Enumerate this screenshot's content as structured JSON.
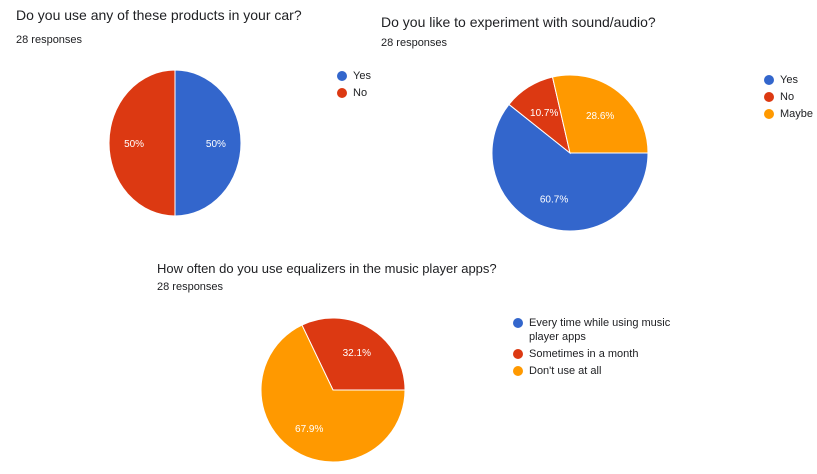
{
  "charts": [
    {
      "title": "Do you use any of these products in your car?",
      "subtitle": "28 responses",
      "chart_data": {
        "type": "pie",
        "categories": [
          "Yes",
          "No"
        ],
        "values": [
          50,
          50
        ],
        "labels": [
          "50%",
          "50%"
        ],
        "colors": [
          "#3366cc",
          "#dc3912"
        ],
        "legend_position": "right"
      }
    },
    {
      "title": "Do you like to experiment with sound/audio?",
      "subtitle": "28 responses",
      "chart_data": {
        "type": "pie",
        "categories": [
          "Yes",
          "No",
          "Maybe"
        ],
        "values": [
          60.7,
          10.7,
          28.6
        ],
        "labels": [
          "60.7%",
          "10.7%",
          "28.6%"
        ],
        "colors": [
          "#3366cc",
          "#dc3912",
          "#ff9900"
        ],
        "legend_position": "right"
      }
    },
    {
      "title": "How often do you use equalizers in the music player apps?",
      "subtitle": "28 responses",
      "chart_data": {
        "type": "pie",
        "categories": [
          "Every time while using music player apps",
          "Sometimes in a month",
          "Don't use at all"
        ],
        "values": [
          0,
          32.1,
          67.9
        ],
        "labels": [
          "",
          "32.1%",
          "67.9%"
        ],
        "colors": [
          "#3366cc",
          "#dc3912",
          "#ff9900"
        ],
        "legend_position": "right"
      }
    }
  ]
}
